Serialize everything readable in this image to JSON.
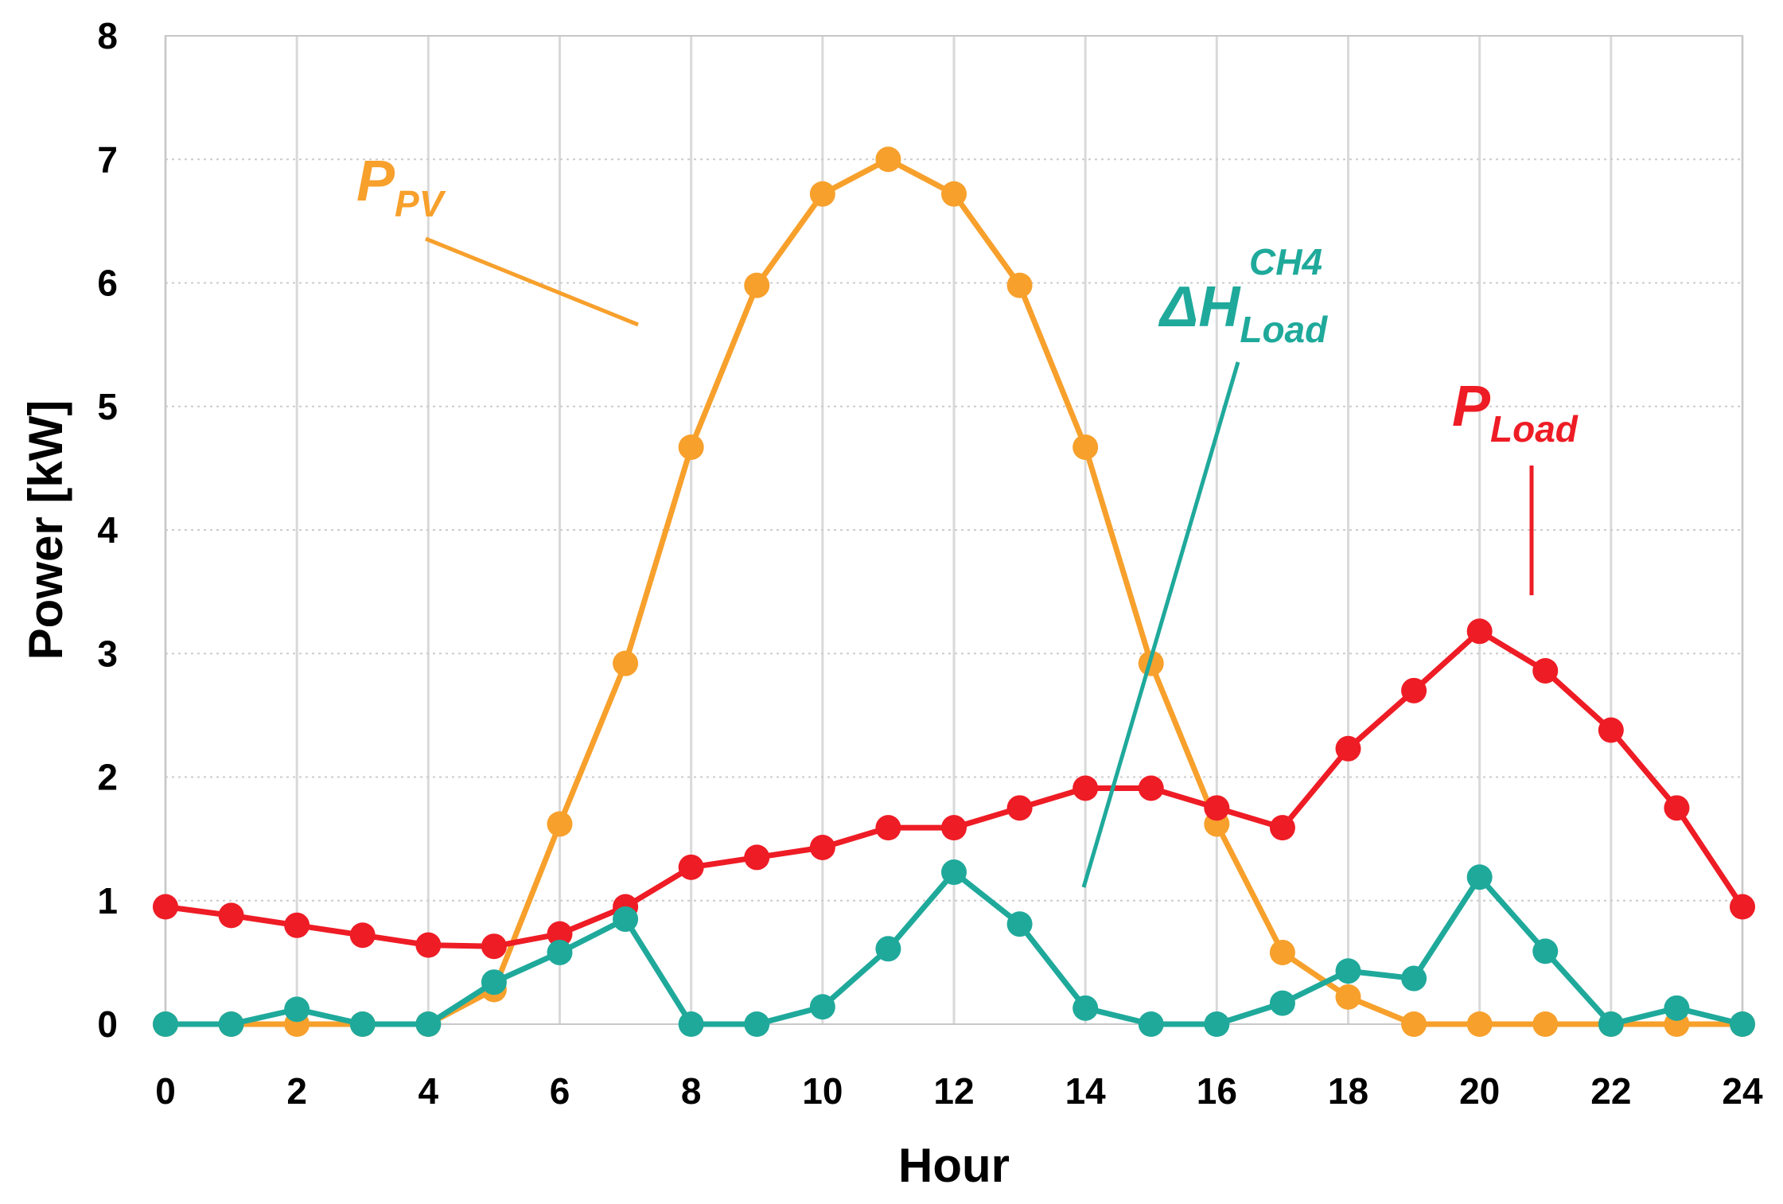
{
  "chart_data": {
    "type": "line",
    "title": "",
    "xlabel": "Hour",
    "ylabel": "Power [kW]",
    "xlim": [
      0,
      24
    ],
    "ylim": [
      0,
      8
    ],
    "xticks": [
      0,
      2,
      4,
      6,
      8,
      10,
      12,
      14,
      16,
      18,
      20,
      22,
      24
    ],
    "yticks": [
      0,
      1,
      2,
      3,
      4,
      5,
      6,
      7,
      8
    ],
    "grid": true,
    "legend": "none (inline annotations)",
    "x": [
      0,
      1,
      2,
      3,
      4,
      5,
      6,
      7,
      8,
      9,
      10,
      11,
      12,
      13,
      14,
      15,
      16,
      17,
      18,
      19,
      20,
      21,
      22,
      23,
      24
    ],
    "series": [
      {
        "name": "P_PV",
        "color": "#F7A02C",
        "values": [
          0,
          0,
          0,
          0,
          0,
          0.28,
          1.62,
          2.92,
          4.67,
          5.98,
          6.72,
          7.0,
          6.72,
          5.98,
          4.67,
          2.92,
          1.62,
          0.58,
          0.22,
          0,
          0,
          0,
          0,
          0,
          0
        ]
      },
      {
        "name": "P_Load",
        "color": "#EE1C25",
        "values": [
          0.95,
          0.88,
          0.8,
          0.72,
          0.64,
          0.63,
          0.73,
          0.95,
          1.27,
          1.35,
          1.43,
          1.59,
          1.59,
          1.75,
          1.91,
          1.91,
          1.75,
          1.59,
          2.23,
          2.7,
          3.18,
          2.86,
          2.38,
          1.75,
          0.95
        ]
      },
      {
        "name": "ΔH_Load^CH4",
        "color": "#1FA99B",
        "values": [
          0,
          0,
          0.12,
          0,
          0,
          0.34,
          0.58,
          0.85,
          0,
          0,
          0.14,
          0.61,
          1.23,
          0.81,
          0.13,
          0,
          0,
          0.17,
          0.43,
          0.37,
          1.19,
          0.59,
          0,
          0.13,
          0
        ]
      }
    ],
    "annotations": {
      "pv": {
        "main": "P",
        "sub": "PV",
        "color": "#F7A02C"
      },
      "load": {
        "main": "P",
        "sub": "Load",
        "color": "#EE1C25"
      },
      "ch4": {
        "main": "ΔH",
        "sub": "Load",
        "sup": "CH4",
        "color": "#1FA99B"
      }
    }
  }
}
